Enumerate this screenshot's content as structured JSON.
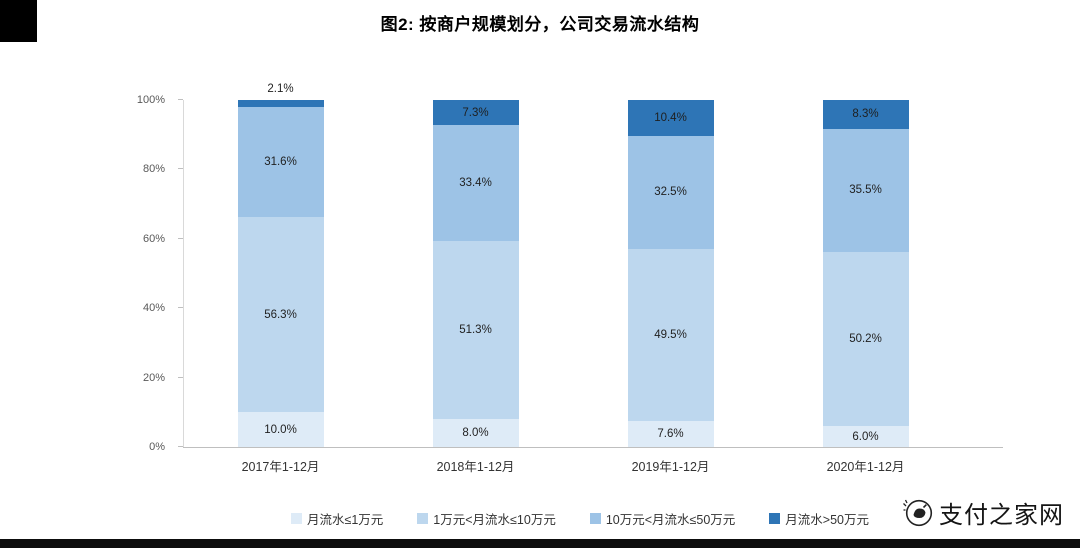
{
  "title": "图2: 按商户规模划分，公司交易流水结构",
  "watermark": {
    "text": "支付之家网"
  },
  "chart_data": {
    "type": "bar",
    "stacked": true,
    "percent_stacked": true,
    "title": "图2: 按商户规模划分，公司交易流水结构",
    "categories": [
      "2017年1-12月",
      "2018年1-12月",
      "2019年1-12月",
      "2020年1-12月"
    ],
    "series": [
      {
        "name": "月流水≤1万元",
        "color": "#deebf7",
        "values": [
          10.0,
          8.0,
          7.6,
          6.0
        ]
      },
      {
        "name": "1万元<月流水≤10万元",
        "color": "#bdd7ee",
        "values": [
          56.3,
          51.3,
          49.5,
          50.2
        ]
      },
      {
        "name": "10万元<月流水≤50万元",
        "color": "#9dc3e6",
        "values": [
          31.6,
          33.4,
          32.5,
          35.5
        ]
      },
      {
        "name": "月流水>50万元",
        "color": "#2e75b6",
        "values": [
          2.1,
          7.3,
          10.4,
          8.3
        ]
      }
    ],
    "y_ticks": [
      "0%",
      "20%",
      "40%",
      "60%",
      "80%",
      "100%"
    ],
    "ylim": [
      0,
      100
    ],
    "grid": false,
    "legend_position": "bottom"
  }
}
